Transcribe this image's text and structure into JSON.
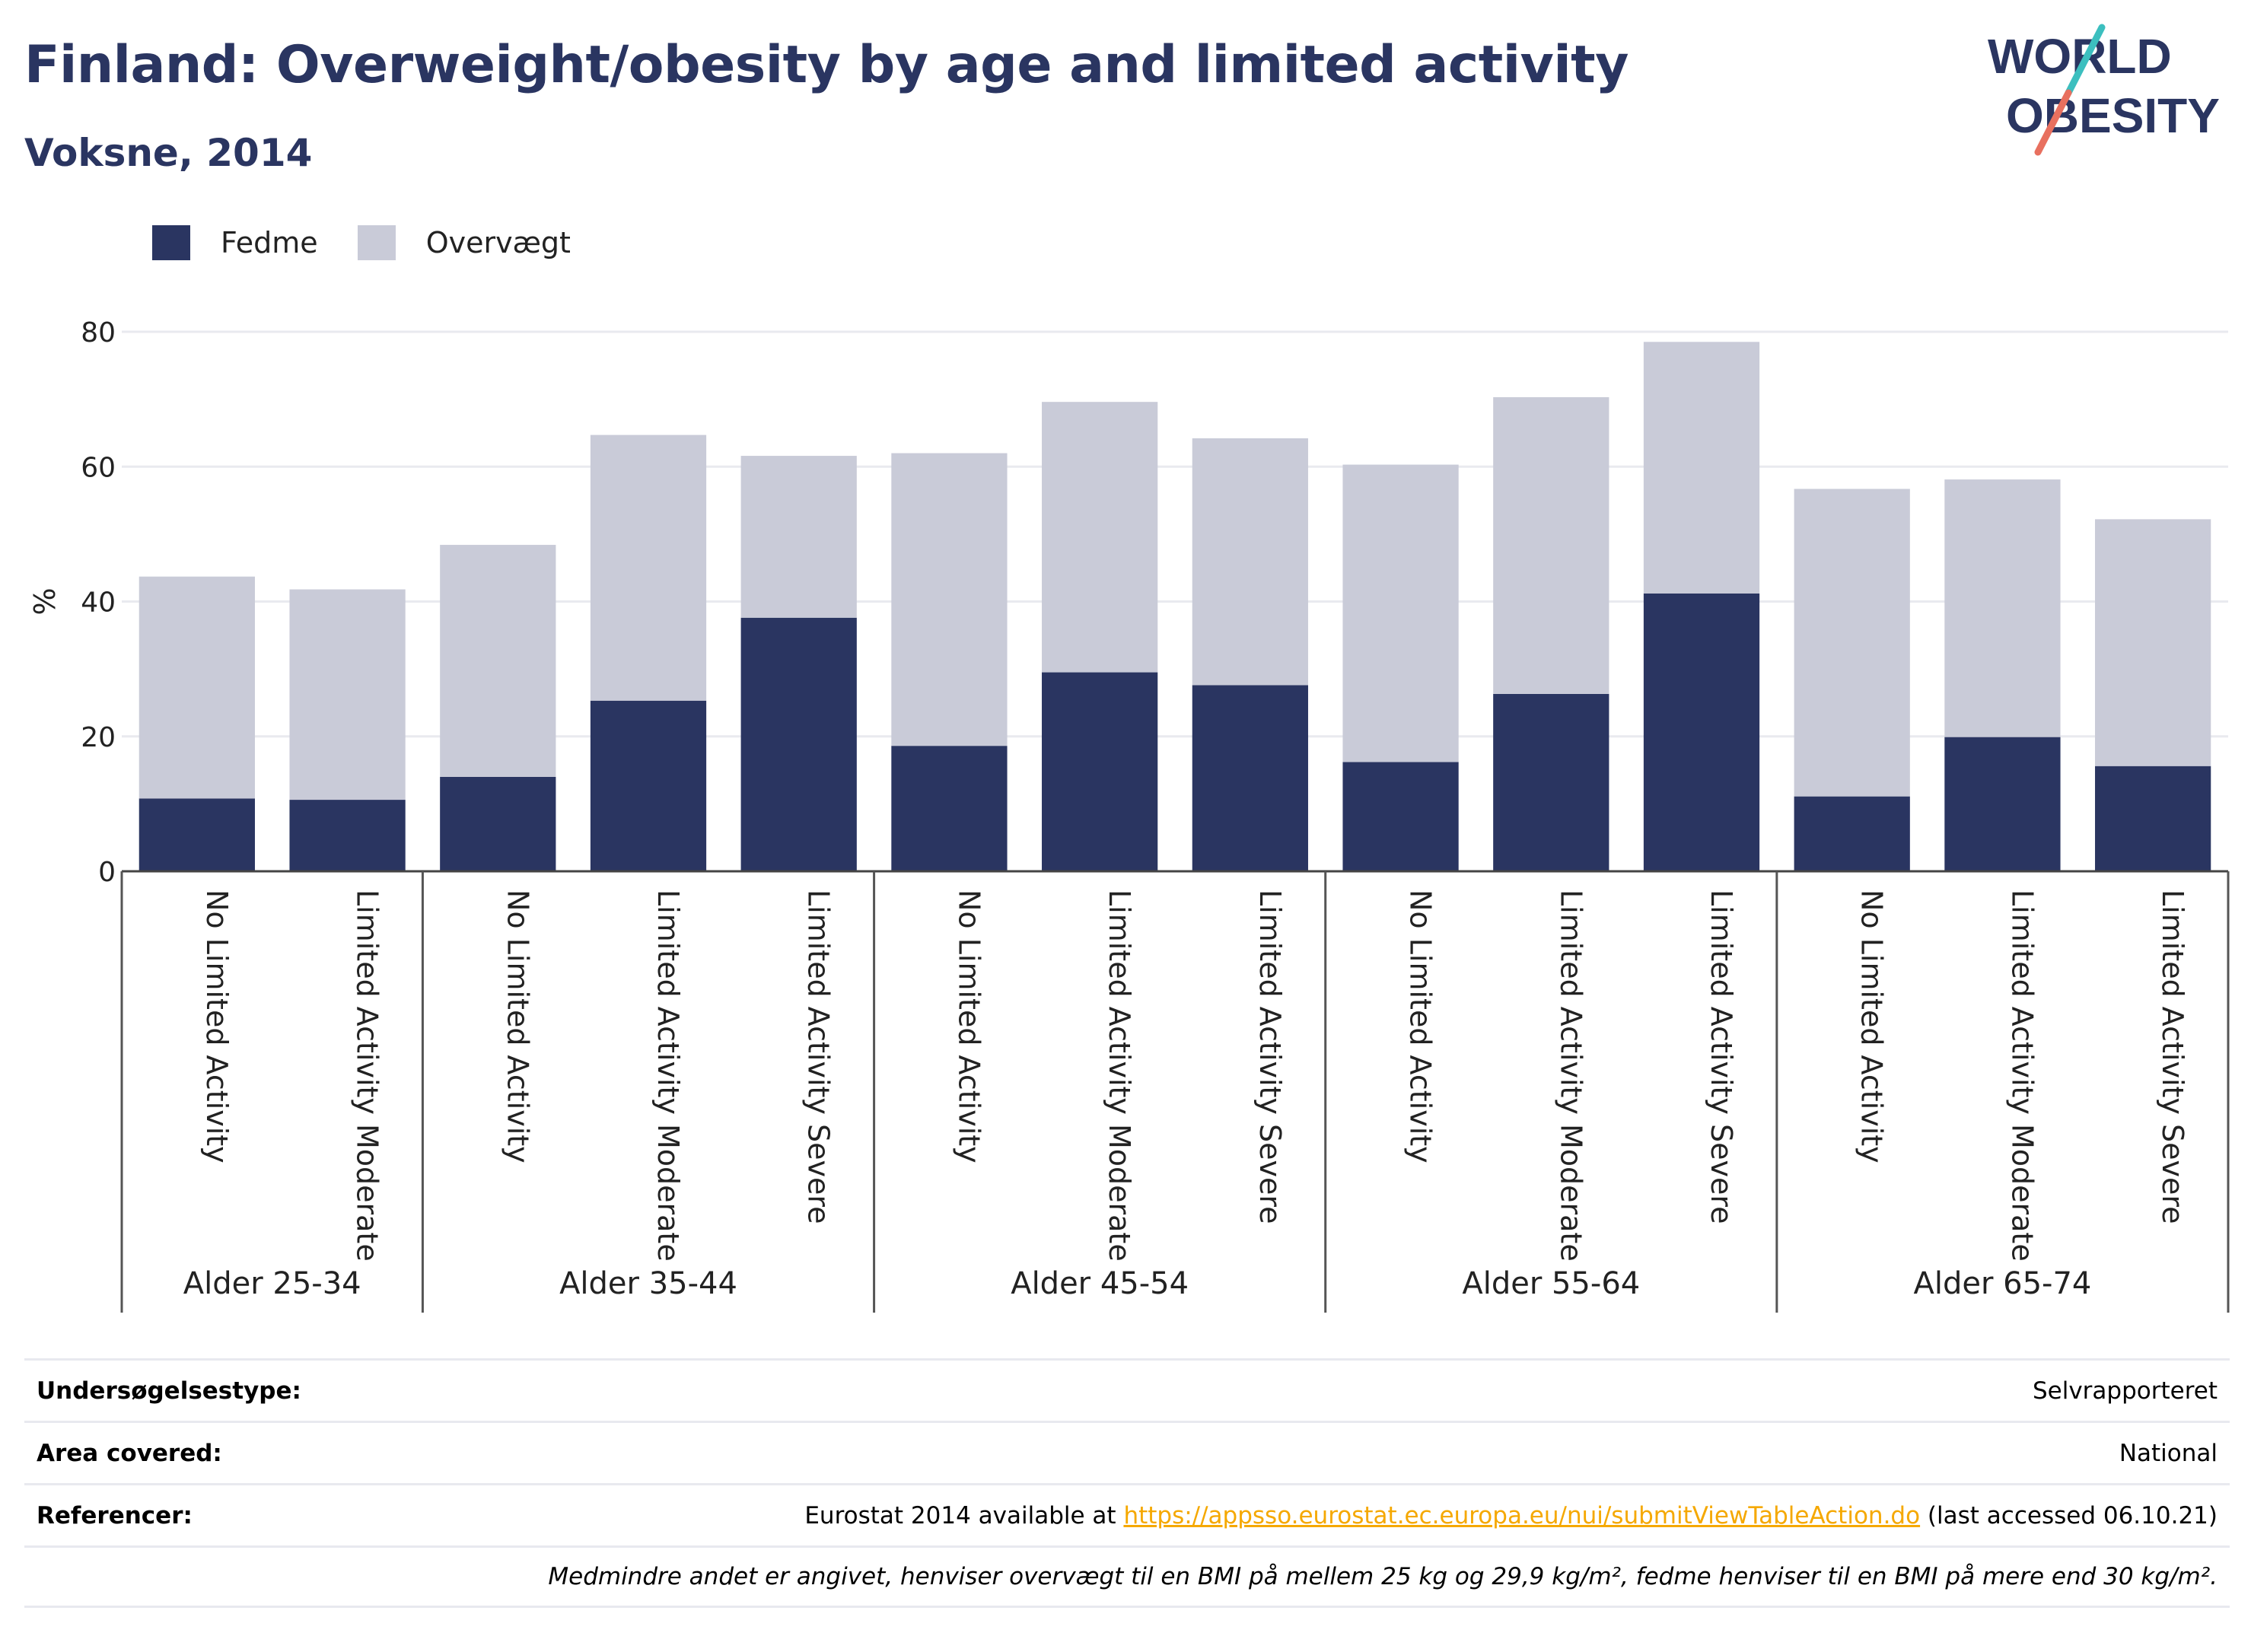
{
  "header": {
    "title": "Finland: Overweight/obesity by age and limited activity",
    "subtitle": "Voksne, 2014"
  },
  "logo": {
    "line1": "WORLD",
    "line2": "OBESITY",
    "accent_colors": [
      "#3cbfbf",
      "#e8705f"
    ]
  },
  "legend": [
    {
      "label": "Fedme",
      "color": "#2a3561"
    },
    {
      "label": "Overvægt",
      "color": "#c9cbd8"
    }
  ],
  "chart_data": {
    "type": "bar",
    "stacked": true,
    "title": "",
    "ylabel": "%",
    "ylim": [
      0,
      80
    ],
    "yticks": [
      0,
      20,
      40,
      60,
      80
    ],
    "grid": true,
    "legend_position": "top-left",
    "categories": [
      "No Limited Activity",
      "Limited Activity Moderate",
      "No Limited Activity",
      "Limited Activity Moderate",
      "Limited Activity Severe",
      "No Limited Activity",
      "Limited Activity Moderate",
      "Limited Activity Severe",
      "No Limited Activity",
      "Limited Activity Moderate",
      "Limited Activity Severe",
      "No Limited Activity",
      "Limited Activity Moderate",
      "Limited Activity Severe"
    ],
    "groups": [
      {
        "label": "Alder 25-34",
        "count": 2
      },
      {
        "label": "Alder 35-44",
        "count": 3
      },
      {
        "label": "Alder 45-54",
        "count": 3
      },
      {
        "label": "Alder 55-64",
        "count": 3
      },
      {
        "label": "Alder 65-74",
        "count": 3
      }
    ],
    "series": [
      {
        "name": "Fedme",
        "color": "#2a3561",
        "values": [
          10.8,
          10.6,
          14.0,
          25.3,
          37.6,
          18.6,
          29.5,
          27.6,
          16.2,
          26.3,
          41.2,
          11.1,
          19.9,
          15.6
        ]
      },
      {
        "name": "Overvægt",
        "color": "#c9cbd8",
        "values": [
          32.9,
          31.2,
          34.4,
          39.4,
          24.0,
          43.4,
          40.1,
          36.6,
          44.1,
          44.0,
          37.3,
          45.6,
          38.2,
          36.6
        ]
      }
    ]
  },
  "footer": {
    "rows": [
      {
        "key": "Undersøgelsestype:",
        "value": "Selvrapporteret"
      },
      {
        "key": "Area covered:",
        "value": "National"
      },
      {
        "key": "Referencer:",
        "value_prefix": "Eurostat 2014 available at ",
        "link": "https://appsso.eurostat.ec.europa.eu/nui/submitViewTableAction.do",
        "value_suffix": " (last accessed 06.10.21)"
      }
    ],
    "note": "Medmindre andet er angivet, henviser overvægt til en BMI på mellem 25 kg og 29,9 kg/m², fedme henviser til en BMI på mere end 30 kg/m²."
  }
}
